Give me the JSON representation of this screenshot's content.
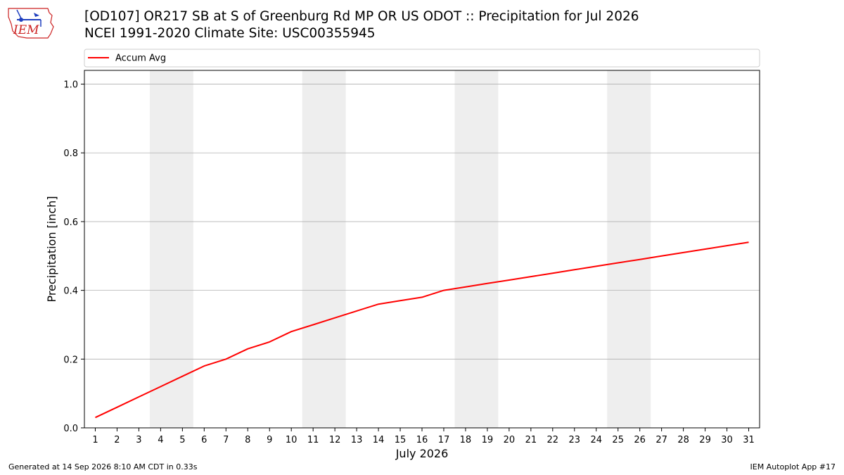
{
  "header": {
    "title_line1": "[OD107] OR217 SB at S of Greenburg Rd MP OR US ODOT :: Precipitation for Jul 2026",
    "title_line2": "NCEI 1991-2020 Climate Site: USC00355945",
    "logo_text": "IEM"
  },
  "footer": {
    "generated": "Generated at 14 Sep 2026 8:10 AM CDT in 0.33s",
    "app": "IEM Autoplot App #17"
  },
  "colors": {
    "line": "#ff0000",
    "weekend_band": "#eeeeee",
    "grid": "#b0b0b0",
    "logo_blue": "#1f3fbf",
    "logo_red": "#cc2222"
  },
  "chart_data": {
    "type": "line",
    "xlabel": "July 2026",
    "ylabel": "Precipitation [inch]",
    "xlim": [
      0.5,
      31.5
    ],
    "ylim": [
      0,
      1.04
    ],
    "yticks": [
      0.0,
      0.2,
      0.4,
      0.6,
      0.8,
      1.0
    ],
    "ytick_labels": [
      "0.0",
      "0.2",
      "0.4",
      "0.6",
      "0.8",
      "1.0"
    ],
    "xticks": [
      1,
      2,
      3,
      4,
      5,
      6,
      7,
      8,
      9,
      10,
      11,
      12,
      13,
      14,
      15,
      16,
      17,
      18,
      19,
      20,
      21,
      22,
      23,
      24,
      25,
      26,
      27,
      28,
      29,
      30,
      31
    ],
    "grid": "horizontal",
    "legend_position": "top",
    "shaded_ranges": [
      [
        3.5,
        5.5
      ],
      [
        10.5,
        12.5
      ],
      [
        17.5,
        19.5
      ],
      [
        24.5,
        26.5
      ]
    ],
    "series": [
      {
        "name": "Accum Avg",
        "color": "#ff0000",
        "x": [
          1,
          2,
          3,
          4,
          5,
          6,
          7,
          8,
          9,
          10,
          11,
          12,
          13,
          14,
          15,
          16,
          17,
          18,
          19,
          20,
          21,
          22,
          23,
          24,
          25,
          26,
          27,
          28,
          29,
          30,
          31
        ],
        "values": [
          0.03,
          0.06,
          0.09,
          0.12,
          0.15,
          0.18,
          0.2,
          0.23,
          0.25,
          0.28,
          0.3,
          0.32,
          0.34,
          0.36,
          0.37,
          0.38,
          0.4,
          0.41,
          0.42,
          0.43,
          0.44,
          0.45,
          0.46,
          0.47,
          0.48,
          0.49,
          0.5,
          0.51,
          0.52,
          0.53,
          0.54
        ]
      }
    ]
  }
}
